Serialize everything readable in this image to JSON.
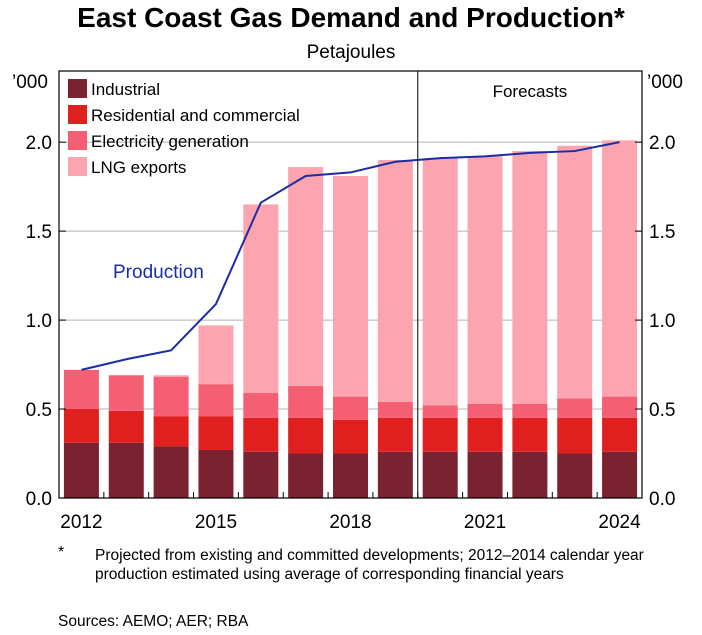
{
  "title": "East Coast Gas Demand and Production*",
  "subtitle": "Petajoules",
  "unit_label_left": "’000",
  "unit_label_right": "’000",
  "forecast_label": "Forecasts",
  "footnote_mark": "*",
  "footnote_text": "Projected from existing and committed developments; 2012–2014 calendar year production estimated using average of corresponding financial years",
  "sources": "Sources: AEMO; AER; RBA",
  "chart_data": {
    "type": "bar",
    "stacked": true,
    "title": "East Coast Gas Demand and Production*",
    "subtitle": "Petajoules",
    "categories": [
      2012,
      2013,
      2014,
      2015,
      2016,
      2017,
      2018,
      2019,
      2020,
      2021,
      2022,
      2023,
      2024
    ],
    "x_tick_labels": [
      "2012",
      "2015",
      "2018",
      "2021",
      "2024"
    ],
    "y_tick_labels": [
      "0.0",
      "0.5",
      "1.0",
      "1.5",
      "2.0"
    ],
    "ylim": [
      0,
      2.4
    ],
    "y_ticks": [
      0,
      0.5,
      1.0,
      1.5,
      2.0
    ],
    "forecast_start": 2020,
    "legend_position": "top-left",
    "series": [
      {
        "name": "Industrial",
        "color": "#7a2230",
        "values": [
          0.31,
          0.31,
          0.29,
          0.27,
          0.26,
          0.25,
          0.25,
          0.26,
          0.26,
          0.26,
          0.26,
          0.25,
          0.26
        ]
      },
      {
        "name": "Residential and commercial",
        "color": "#e0201f",
        "values": [
          0.19,
          0.18,
          0.17,
          0.19,
          0.19,
          0.2,
          0.19,
          0.19,
          0.19,
          0.19,
          0.19,
          0.2,
          0.19
        ]
      },
      {
        "name": "Electricity generation",
        "color": "#f45f74",
        "values": [
          0.22,
          0.2,
          0.22,
          0.18,
          0.14,
          0.18,
          0.13,
          0.09,
          0.07,
          0.08,
          0.08,
          0.11,
          0.12
        ]
      },
      {
        "name": "LNG exports",
        "color": "#fca4b0",
        "values": [
          0.0,
          0.0,
          0.01,
          0.33,
          1.06,
          1.23,
          1.24,
          1.36,
          1.39,
          1.39,
          1.42,
          1.42,
          1.44
        ]
      }
    ],
    "line_series": [
      {
        "name": "Production",
        "color": "#1a2da3",
        "values": [
          0.72,
          0.78,
          0.83,
          1.09,
          1.66,
          1.81,
          1.83,
          1.89,
          1.91,
          1.92,
          1.94,
          1.95,
          2.0
        ]
      }
    ]
  }
}
